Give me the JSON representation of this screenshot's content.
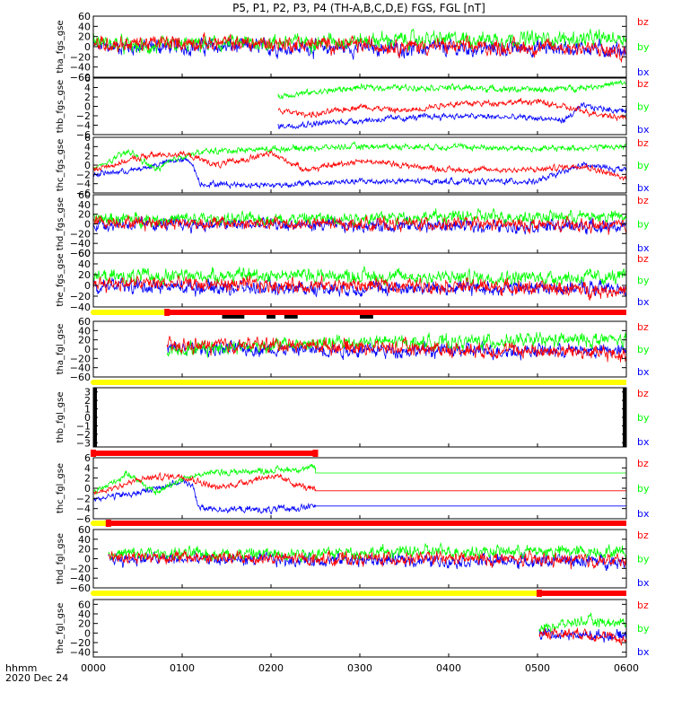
{
  "title": "P5, P1, P2, P3, P4 (TH-A,B,C,D,E) FGS, FGL [nT]",
  "colors": {
    "bz": "#ff0000",
    "by": "#00ff00",
    "bx": "#0000ff",
    "axis": "#000000",
    "bar_yellow": "#ffff00",
    "bar_red": "#ff0000",
    "bar_black": "#000000"
  },
  "chart_data": {
    "type": "line",
    "x_axis": {
      "range_hours": [
        0,
        6
      ],
      "tick_labels": [
        "0000",
        "0100",
        "0200",
        "0300",
        "0400",
        "0500",
        "0600"
      ],
      "label_line1": "hhmm",
      "label_line2": "2020 Dec 24"
    },
    "legend": [
      "bz",
      "by",
      "bx"
    ],
    "panels": [
      {
        "id": "p1",
        "ylabel": "tha_fgs_gse",
        "ylim": [
          -60,
          60
        ],
        "ticks": [
          "60",
          "40",
          "20",
          "0",
          "−20",
          "−40",
          "−60"
        ],
        "data_start": 0.0,
        "data_end": 6.0,
        "noise": 14,
        "series": [
          {
            "name": "bx",
            "knots": [
              [
                0,
                0
              ],
              [
                1.2,
                0
              ],
              [
                2.4,
                -2
              ],
              [
                4,
                -4
              ],
              [
                5.5,
                -2
              ],
              [
                6,
                -8
              ]
            ]
          },
          {
            "name": "by",
            "knots": [
              [
                0,
                10
              ],
              [
                0.6,
                -2
              ],
              [
                1.2,
                5
              ],
              [
                2.4,
                10
              ],
              [
                4,
                15
              ],
              [
                5.5,
                15
              ],
              [
                6,
                18
              ]
            ]
          },
          {
            "name": "bz",
            "knots": [
              [
                0,
                5
              ],
              [
                1.2,
                8
              ],
              [
                2.4,
                5
              ],
              [
                4,
                0
              ],
              [
                5.5,
                -2
              ],
              [
                6,
                -15
              ]
            ]
          }
        ]
      },
      {
        "id": "p2",
        "ylabel": "thb_fgs_gse",
        "ylim": [
          -6,
          6
        ],
        "ticks": [
          "6",
          "4",
          "2",
          "0",
          "−2",
          "−4",
          "−6"
        ],
        "data_start": 2.08,
        "data_end": 6.0,
        "noise": 0.6,
        "series": [
          {
            "name": "bx",
            "knots": [
              [
                2.08,
                -4.2
              ],
              [
                3,
                -3
              ],
              [
                4,
                -2
              ],
              [
                5,
                -2.5
              ],
              [
                5.3,
                -3
              ],
              [
                5.5,
                0
              ],
              [
                6,
                -1
              ]
            ]
          },
          {
            "name": "by",
            "knots": [
              [
                2.08,
                2.2
              ],
              [
                3,
                4
              ],
              [
                4,
                4
              ],
              [
                5,
                3.5
              ],
              [
                5.5,
                4
              ],
              [
                6,
                5
              ]
            ]
          },
          {
            "name": "bz",
            "knots": [
              [
                2.08,
                -1
              ],
              [
                2.5,
                -1.8
              ],
              [
                3,
                0
              ],
              [
                3.5,
                -1
              ],
              [
                4,
                0.5
              ],
              [
                5,
                1
              ],
              [
                5.5,
                -1
              ],
              [
                6,
                -2.5
              ]
            ]
          }
        ]
      },
      {
        "id": "p3",
        "ylabel": "thc_fgs_gse",
        "ylim": [
          -6,
          6
        ],
        "ticks": [
          "6",
          "4",
          "2",
          "0",
          "−2",
          "−4",
          "−6"
        ],
        "data_start": 0.0,
        "data_end": 6.0,
        "noise": 0.6,
        "series": [
          {
            "name": "bx",
            "knots": [
              [
                0,
                -2
              ],
              [
                0.5,
                -1
              ],
              [
                0.9,
                1
              ],
              [
                1.1,
                1
              ],
              [
                1.2,
                -4
              ],
              [
                2,
                -4.3
              ],
              [
                3,
                -3.5
              ],
              [
                4,
                -3.5
              ],
              [
                5,
                -3.5
              ],
              [
                5.5,
                0
              ],
              [
                6,
                -1
              ]
            ]
          },
          {
            "name": "by",
            "knots": [
              [
                0,
                -1
              ],
              [
                0.4,
                3
              ],
              [
                0.7,
                -1
              ],
              [
                1,
                2
              ],
              [
                1.3,
                3
              ],
              [
                2,
                3.5
              ],
              [
                3,
                4
              ],
              [
                4,
                4
              ],
              [
                5,
                3.5
              ],
              [
                6,
                4
              ]
            ]
          },
          {
            "name": "bz",
            "knots": [
              [
                0,
                -1
              ],
              [
                0.6,
                2
              ],
              [
                1,
                2.5
              ],
              [
                1.4,
                0
              ],
              [
                2,
                2.5
              ],
              [
                2.4,
                -1
              ],
              [
                3,
                1
              ],
              [
                4,
                -1
              ],
              [
                5,
                -1
              ],
              [
                5.5,
                0
              ],
              [
                6,
                -3
              ]
            ]
          }
        ]
      },
      {
        "id": "p4",
        "ylabel": "thd_fgs_gse",
        "ylim": [
          -60,
          60
        ],
        "ticks": [
          "60",
          "40",
          "20",
          "0",
          "−20",
          "−40",
          "−60"
        ],
        "data_start": 0.0,
        "data_end": 6.0,
        "noise": 12,
        "series": [
          {
            "name": "bx",
            "knots": [
              [
                0,
                0
              ],
              [
                2,
                -2
              ],
              [
                4,
                -4
              ],
              [
                6,
                -5
              ]
            ]
          },
          {
            "name": "by",
            "knots": [
              [
                0,
                10
              ],
              [
                2,
                10
              ],
              [
                4,
                15
              ],
              [
                6,
                15
              ]
            ]
          },
          {
            "name": "bz",
            "knots": [
              [
                0,
                5
              ],
              [
                2,
                0
              ],
              [
                4,
                0
              ],
              [
                6,
                -5
              ]
            ]
          }
        ]
      },
      {
        "id": "p5",
        "ylabel": "the_fgs_gse",
        "ylim": [
          -40,
          60
        ],
        "ticks": [
          "60",
          "40",
          "20",
          "0",
          "−20",
          "−40"
        ],
        "data_start": 0.0,
        "data_end": 6.0,
        "noise": 12,
        "series": [
          {
            "name": "bx",
            "knots": [
              [
                0,
                0
              ],
              [
                2,
                -5
              ],
              [
                4,
                -5
              ],
              [
                6,
                -5
              ]
            ]
          },
          {
            "name": "by",
            "knots": [
              [
                0,
                15
              ],
              [
                2,
                20
              ],
              [
                4,
                15
              ],
              [
                6,
                15
              ]
            ]
          },
          {
            "name": "bz",
            "knots": [
              [
                0,
                5
              ],
              [
                2,
                0
              ],
              [
                4,
                0
              ],
              [
                6,
                -10
              ]
            ]
          }
        ]
      },
      {
        "id": "p6",
        "ylabel": "tha_fgl_gse",
        "ylim": [
          -60,
          60
        ],
        "ticks": [
          "60",
          "40",
          "20",
          "0",
          "−20",
          "−40",
          "−60"
        ],
        "data_start": 0.83,
        "data_end": 6.0,
        "noise": 14,
        "series": [
          {
            "name": "bx",
            "knots": [
              [
                0.83,
                0
              ],
              [
                2,
                0
              ],
              [
                3.5,
                -3
              ],
              [
                5.5,
                -3
              ],
              [
                6,
                -5
              ]
            ]
          },
          {
            "name": "by",
            "knots": [
              [
                0.83,
                0
              ],
              [
                1.5,
                5
              ],
              [
                3,
                15
              ],
              [
                4,
                15
              ],
              [
                5.5,
                20
              ],
              [
                6,
                20
              ]
            ]
          },
          {
            "name": "bz",
            "knots": [
              [
                0.83,
                5
              ],
              [
                2,
                10
              ],
              [
                3,
                5
              ],
              [
                4,
                0
              ],
              [
                5.5,
                -5
              ],
              [
                6,
                -15
              ]
            ]
          }
        ]
      },
      {
        "id": "p7",
        "ylabel": "thb_fgl_gse",
        "ylim": [
          -3.5,
          3.5
        ],
        "ticks": [
          "3",
          "2",
          "1",
          "0",
          "−1",
          "−2",
          "−3"
        ],
        "data_start": null,
        "data_end": null,
        "noise": 0,
        "black_edges": true,
        "series": []
      },
      {
        "id": "p8",
        "ylabel": "thc_fgl_gse",
        "ylim": [
          -6,
          6
        ],
        "ticks": [
          "6",
          "4",
          "2",
          "0",
          "−2",
          "−4",
          "−6"
        ],
        "data_start": 0.0,
        "data_end": 2.5,
        "noise": 0.6,
        "flat_until": 6.0,
        "series": [
          {
            "name": "bx",
            "knots": [
              [
                0,
                -2
              ],
              [
                0.5,
                -1
              ],
              [
                0.9,
                1
              ],
              [
                1.1,
                1
              ],
              [
                1.2,
                -4
              ],
              [
                2,
                -4.3
              ],
              [
                2.5,
                -3.5
              ]
            ],
            "flat": -3.5
          },
          {
            "name": "by",
            "knots": [
              [
                0,
                -1
              ],
              [
                0.4,
                3
              ],
              [
                0.7,
                -1
              ],
              [
                1,
                2
              ],
              [
                1.3,
                3
              ],
              [
                2,
                3.5
              ],
              [
                2.5,
                4
              ]
            ],
            "flat": 3
          },
          {
            "name": "bz",
            "knots": [
              [
                0,
                -1
              ],
              [
                0.6,
                2
              ],
              [
                1,
                2.5
              ],
              [
                1.4,
                0
              ],
              [
                2,
                2.5
              ],
              [
                2.5,
                -0.5
              ]
            ],
            "flat": -0.5
          }
        ]
      },
      {
        "id": "p9",
        "ylabel": "thd_fgl_gse",
        "ylim": [
          -60,
          60
        ],
        "ticks": [
          "60",
          "40",
          "20",
          "0",
          "−20",
          "−40",
          "−60"
        ],
        "data_start": 0.17,
        "data_end": 6.0,
        "noise": 12,
        "series": [
          {
            "name": "bx",
            "knots": [
              [
                0.17,
                0
              ],
              [
                2,
                -2
              ],
              [
                4,
                -4
              ],
              [
                6,
                -5
              ]
            ]
          },
          {
            "name": "by",
            "knots": [
              [
                0.17,
                10
              ],
              [
                2,
                10
              ],
              [
                4,
                15
              ],
              [
                6,
                15
              ]
            ]
          },
          {
            "name": "bz",
            "knots": [
              [
                0.17,
                5
              ],
              [
                2,
                0
              ],
              [
                4,
                0
              ],
              [
                6,
                -5
              ]
            ]
          }
        ]
      },
      {
        "id": "p10",
        "ylabel": "the_fgl_gse",
        "ylim": [
          -50,
          70
        ],
        "ticks": [
          "60",
          "40",
          "20",
          "0",
          "−20",
          "−40"
        ],
        "data_start": 5.02,
        "data_end": 6.0,
        "noise": 10,
        "series": [
          {
            "name": "bx",
            "knots": [
              [
                5.02,
                0
              ],
              [
                5.5,
                -5
              ],
              [
                6,
                -5
              ]
            ]
          },
          {
            "name": "by",
            "knots": [
              [
                5.02,
                10
              ],
              [
                5.5,
                25
              ],
              [
                6,
                20
              ]
            ]
          },
          {
            "name": "bz",
            "knots": [
              [
                5.02,
                0
              ],
              [
                5.5,
                0
              ],
              [
                6,
                -15
              ]
            ]
          }
        ]
      }
    ],
    "mode_bars": [
      {
        "after_panel": "p5",
        "yellow_end": 0.83,
        "red_start": 0.83,
        "black_blips": [
          [
            1.45,
            1.7
          ],
          [
            1.95,
            2.05
          ],
          [
            2.15,
            2.3
          ],
          [
            3.0,
            3.15
          ]
        ]
      },
      {
        "after_panel": "p6",
        "yellow_end": 6.0,
        "red_start": null,
        "black_blips": []
      },
      {
        "after_panel": "p7",
        "yellow_end": 0.0,
        "red_start": 0.0,
        "red_end": 2.5,
        "black_blips": []
      },
      {
        "after_panel": "p8",
        "yellow_end": 0.17,
        "red_start": 0.17,
        "black_blips": []
      },
      {
        "after_panel": "p9",
        "yellow_end": 5.02,
        "red_start": 5.02,
        "black_blips": []
      }
    ]
  }
}
